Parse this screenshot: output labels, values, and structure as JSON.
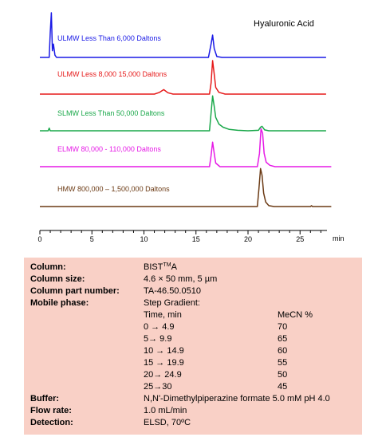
{
  "chart_data": {
    "type": "line",
    "title": "Hyaluronic Acid",
    "xlabel": "min",
    "xlim": [
      0,
      28
    ],
    "xticks": [
      0,
      5,
      10,
      15,
      20,
      25
    ],
    "series": [
      {
        "name": "ULMW Less Than 6,000 Daltons",
        "color": "#1a1ae6",
        "x": [
          0,
          0.9,
          1.0,
          1.1,
          1.2,
          1.3,
          1.45,
          1.6,
          2.0,
          16.2,
          16.45,
          16.6,
          16.75,
          17.0,
          17.5,
          27.5
        ],
        "y": [
          0,
          0,
          0.55,
          1.0,
          0.15,
          0.3,
          0.05,
          0,
          0,
          0,
          0.3,
          0.5,
          0.2,
          0.02,
          0,
          0
        ]
      },
      {
        "name": "ULMW Less 8,000 15,000 Daltons",
        "color": "#e61a1a",
        "x": [
          0,
          11.0,
          11.5,
          11.9,
          12.3,
          12.8,
          16.3,
          16.45,
          16.6,
          16.75,
          16.9,
          17.2,
          17.8,
          27.5
        ],
        "y": [
          0,
          0,
          0.04,
          0.1,
          0.03,
          0,
          0,
          0.25,
          0.75,
          0.45,
          0.15,
          0.04,
          0,
          0
        ]
      },
      {
        "name": "SLMW Less Than 50,000 Daltons",
        "color": "#1aa84a",
        "x": [
          0,
          0.8,
          0.9,
          1.0,
          16.3,
          16.45,
          16.6,
          16.75,
          16.9,
          17.2,
          17.6,
          18.2,
          19.0,
          20.0,
          21.0,
          21.2,
          21.35,
          21.6,
          22.0,
          27.5
        ],
        "y": [
          0,
          0,
          0.06,
          0,
          0,
          0.4,
          0.78,
          0.55,
          0.3,
          0.15,
          0.08,
          0.03,
          0.01,
          0,
          0.01,
          0.08,
          0.1,
          0.02,
          0,
          0
        ]
      },
      {
        "name": "ELMW 80,000 - 110,000 Daltons",
        "color": "#e61ae6",
        "x": [
          0,
          16.3,
          16.45,
          16.6,
          16.75,
          16.9,
          17.3,
          20.9,
          21.1,
          21.25,
          21.4,
          21.55,
          21.75,
          22.1,
          22.6,
          28.0
        ],
        "y": [
          0,
          0,
          0.25,
          0.55,
          0.3,
          0.08,
          0,
          0,
          0.3,
          0.85,
          0.75,
          0.3,
          0.1,
          0.03,
          0,
          0
        ]
      },
      {
        "name": "HMW 800,000 – 1,500,000 Daltons",
        "color": "#6b3a14",
        "x": [
          0,
          20.9,
          21.05,
          21.2,
          21.35,
          21.5,
          21.7,
          22.0,
          22.5,
          26.0,
          26.1,
          26.2,
          28.0
        ],
        "y": [
          0,
          0,
          0.4,
          0.85,
          0.7,
          0.3,
          0.1,
          0.02,
          0,
          0,
          0.02,
          0,
          0
        ]
      }
    ]
  },
  "conditions": {
    "column_label": "Column:",
    "column_name": "BIST",
    "column_sup": "TM",
    "column_suffix": "A",
    "size_label": "Column size:",
    "size_value": "4.6 × 50 mm, 5 µm",
    "part_label": "Column part number:",
    "part_value": "TA-46.50.0510",
    "phase_label": "Mobile phase:",
    "phase_value": "Step Gradient:",
    "gradient_headers": {
      "time": "Time, min",
      "mecn": "MeCN %"
    },
    "gradient_rows": [
      {
        "time": "0  → 4.9",
        "mecn": "70"
      },
      {
        "time": "5→ 9.9",
        "mecn": "65"
      },
      {
        "time": "10 → 14.9",
        "mecn": "60"
      },
      {
        "time": "15 → 19.9",
        "mecn": "55"
      },
      {
        "time": "20→ 24.9",
        "mecn": "50"
      },
      {
        "time": "25→30",
        "mecn": "45"
      }
    ],
    "buffer_label": "Buffer:",
    "buffer_value": "N,N'-Dimethylpiperazine  formate 5.0 mM pH 4.0",
    "flow_label": "Flow rate:",
    "flow_value": "1.0 mL/min",
    "detection_label": "Detection:",
    "detection_value": " ELSD, 70ºC"
  }
}
